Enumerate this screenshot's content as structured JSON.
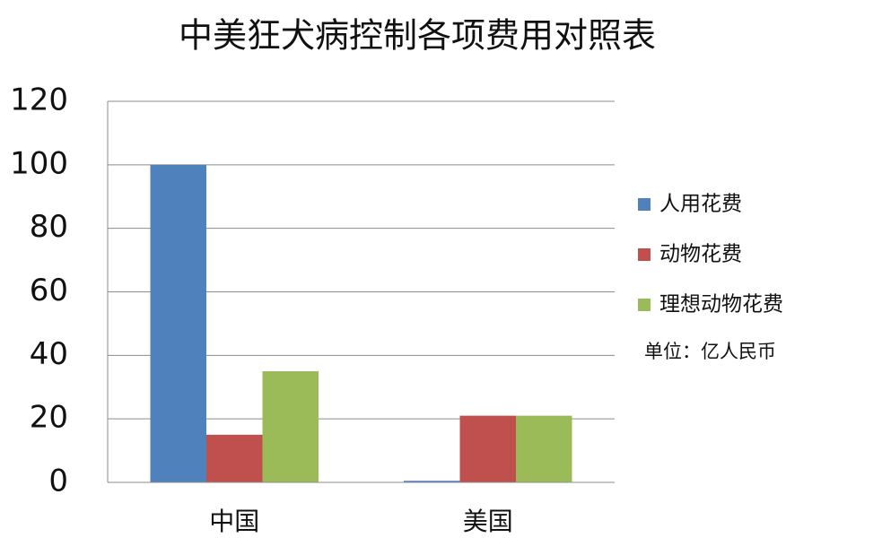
{
  "chart_data": {
    "type": "bar",
    "title": "中美狂犬病控制各项费用对照表",
    "categories": [
      "中国",
      "美国"
    ],
    "series": [
      {
        "name": "人用花费",
        "color": "#4f81bd",
        "values": [
          100,
          0.5
        ]
      },
      {
        "name": "动物花费",
        "color": "#c0504d",
        "values": [
          15,
          21
        ]
      },
      {
        "name": "理想动物花费",
        "color": "#9bbb59",
        "values": [
          35,
          21
        ]
      }
    ],
    "ylim": [
      0,
      120
    ],
    "yticks": [
      0,
      20,
      40,
      60,
      80,
      100,
      120
    ],
    "grid": true,
    "legend": "right",
    "annotation": "单位：亿人民币"
  }
}
